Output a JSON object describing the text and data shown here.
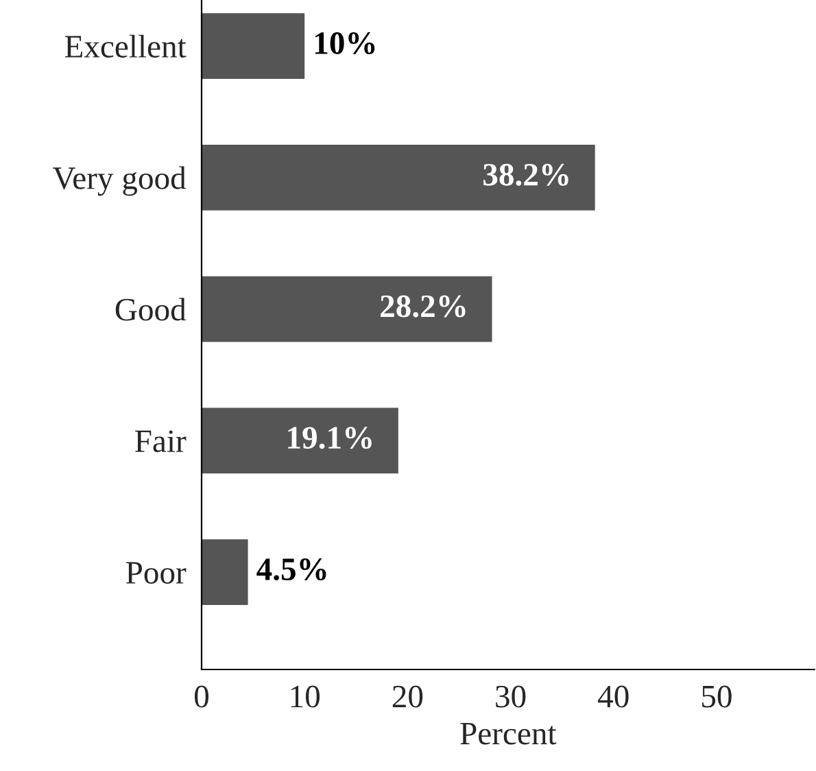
{
  "chart_data": {
    "type": "bar",
    "orientation": "horizontal",
    "xlabel": "Percent",
    "categories": [
      "Excellent",
      "Very good",
      "Good",
      "Fair",
      "Poor"
    ],
    "values": [
      10,
      38.2,
      28.2,
      19.1,
      4.5
    ],
    "value_labels": [
      "10%",
      "38.2%",
      "28.2%",
      "19.1%",
      "4.5%"
    ],
    "color": "#555555",
    "xlim": [
      0,
      59.5
    ],
    "xticks": [
      0,
      10,
      20,
      30,
      40,
      50
    ],
    "grid": false,
    "legend": false
  }
}
